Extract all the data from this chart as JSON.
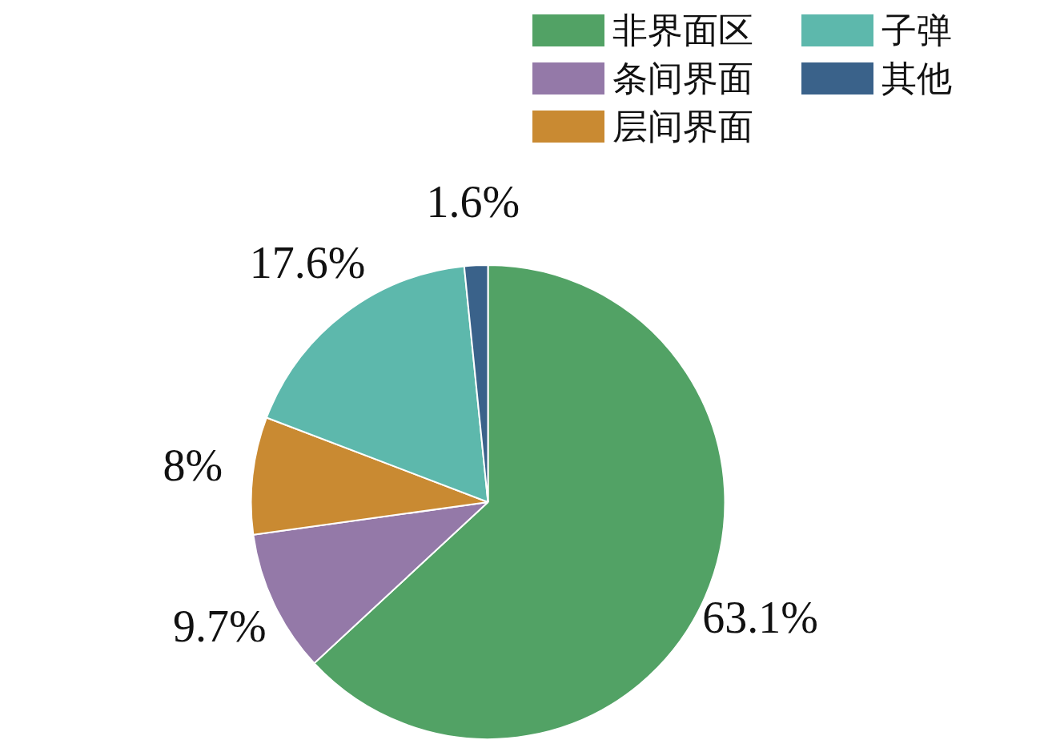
{
  "chart_data": {
    "type": "pie",
    "categories": [
      "非界面区",
      "条间界面",
      "层间界面",
      "子弹",
      "其他"
    ],
    "values": [
      63.1,
      9.7,
      8,
      17.6,
      1.6
    ],
    "colors": [
      "#52a265",
      "#9479a8",
      "#c98a32",
      "#5db8ac",
      "#3a628a"
    ],
    "value_labels": [
      "63.1%",
      "9.7%",
      "8%",
      "17.6%",
      "1.6%"
    ],
    "legend": "top right"
  }
}
